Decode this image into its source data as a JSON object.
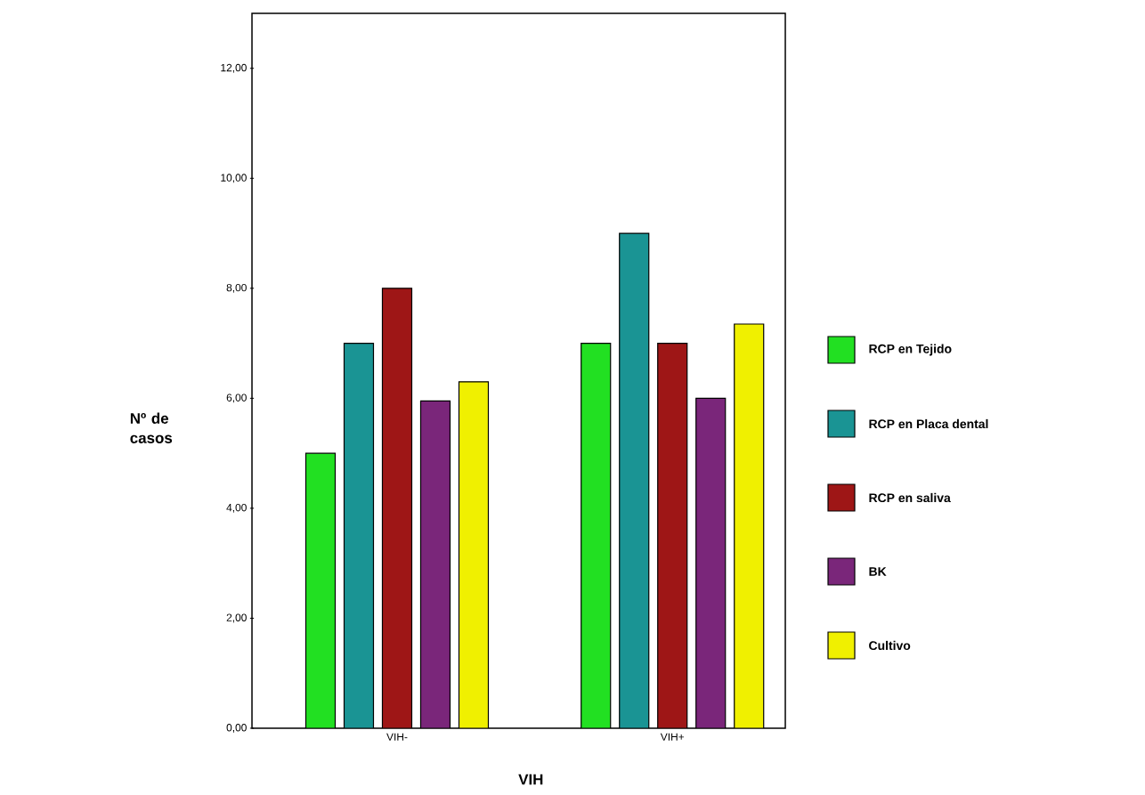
{
  "chart_data": {
    "type": "bar",
    "xlabel": "VIH",
    "ylabel": "Nº de casos",
    "categories": [
      "VIH-",
      "VIH+"
    ],
    "series": [
      {
        "name": "RCP en Tejido",
        "color": "#22e022",
        "values": [
          5,
          7
        ]
      },
      {
        "name": "RCP en Placa dental",
        "color": "#1a9494",
        "values": [
          7,
          9
        ]
      },
      {
        "name": "RCP en saliva",
        "color": "#9e1616",
        "values": [
          8,
          7
        ]
      },
      {
        "name": "BK",
        "color": "#7a267a",
        "values": [
          5.95,
          6
        ]
      },
      {
        "name": "Cultivo",
        "color": "#f0f000",
        "values": [
          6.3,
          7.35
        ]
      }
    ],
    "ylim": [
      0,
      13
    ],
    "yticks": [
      {
        "value": 0,
        "label": "0,00"
      },
      {
        "value": 2,
        "label": "2,00"
      },
      {
        "value": 4,
        "label": "4,00"
      },
      {
        "value": 6,
        "label": "6,00"
      },
      {
        "value": 8,
        "label": "8,00"
      },
      {
        "value": 10,
        "label": "10,00"
      },
      {
        "value": 12,
        "label": "12,00"
      }
    ],
    "grid": false,
    "legend": "right"
  }
}
